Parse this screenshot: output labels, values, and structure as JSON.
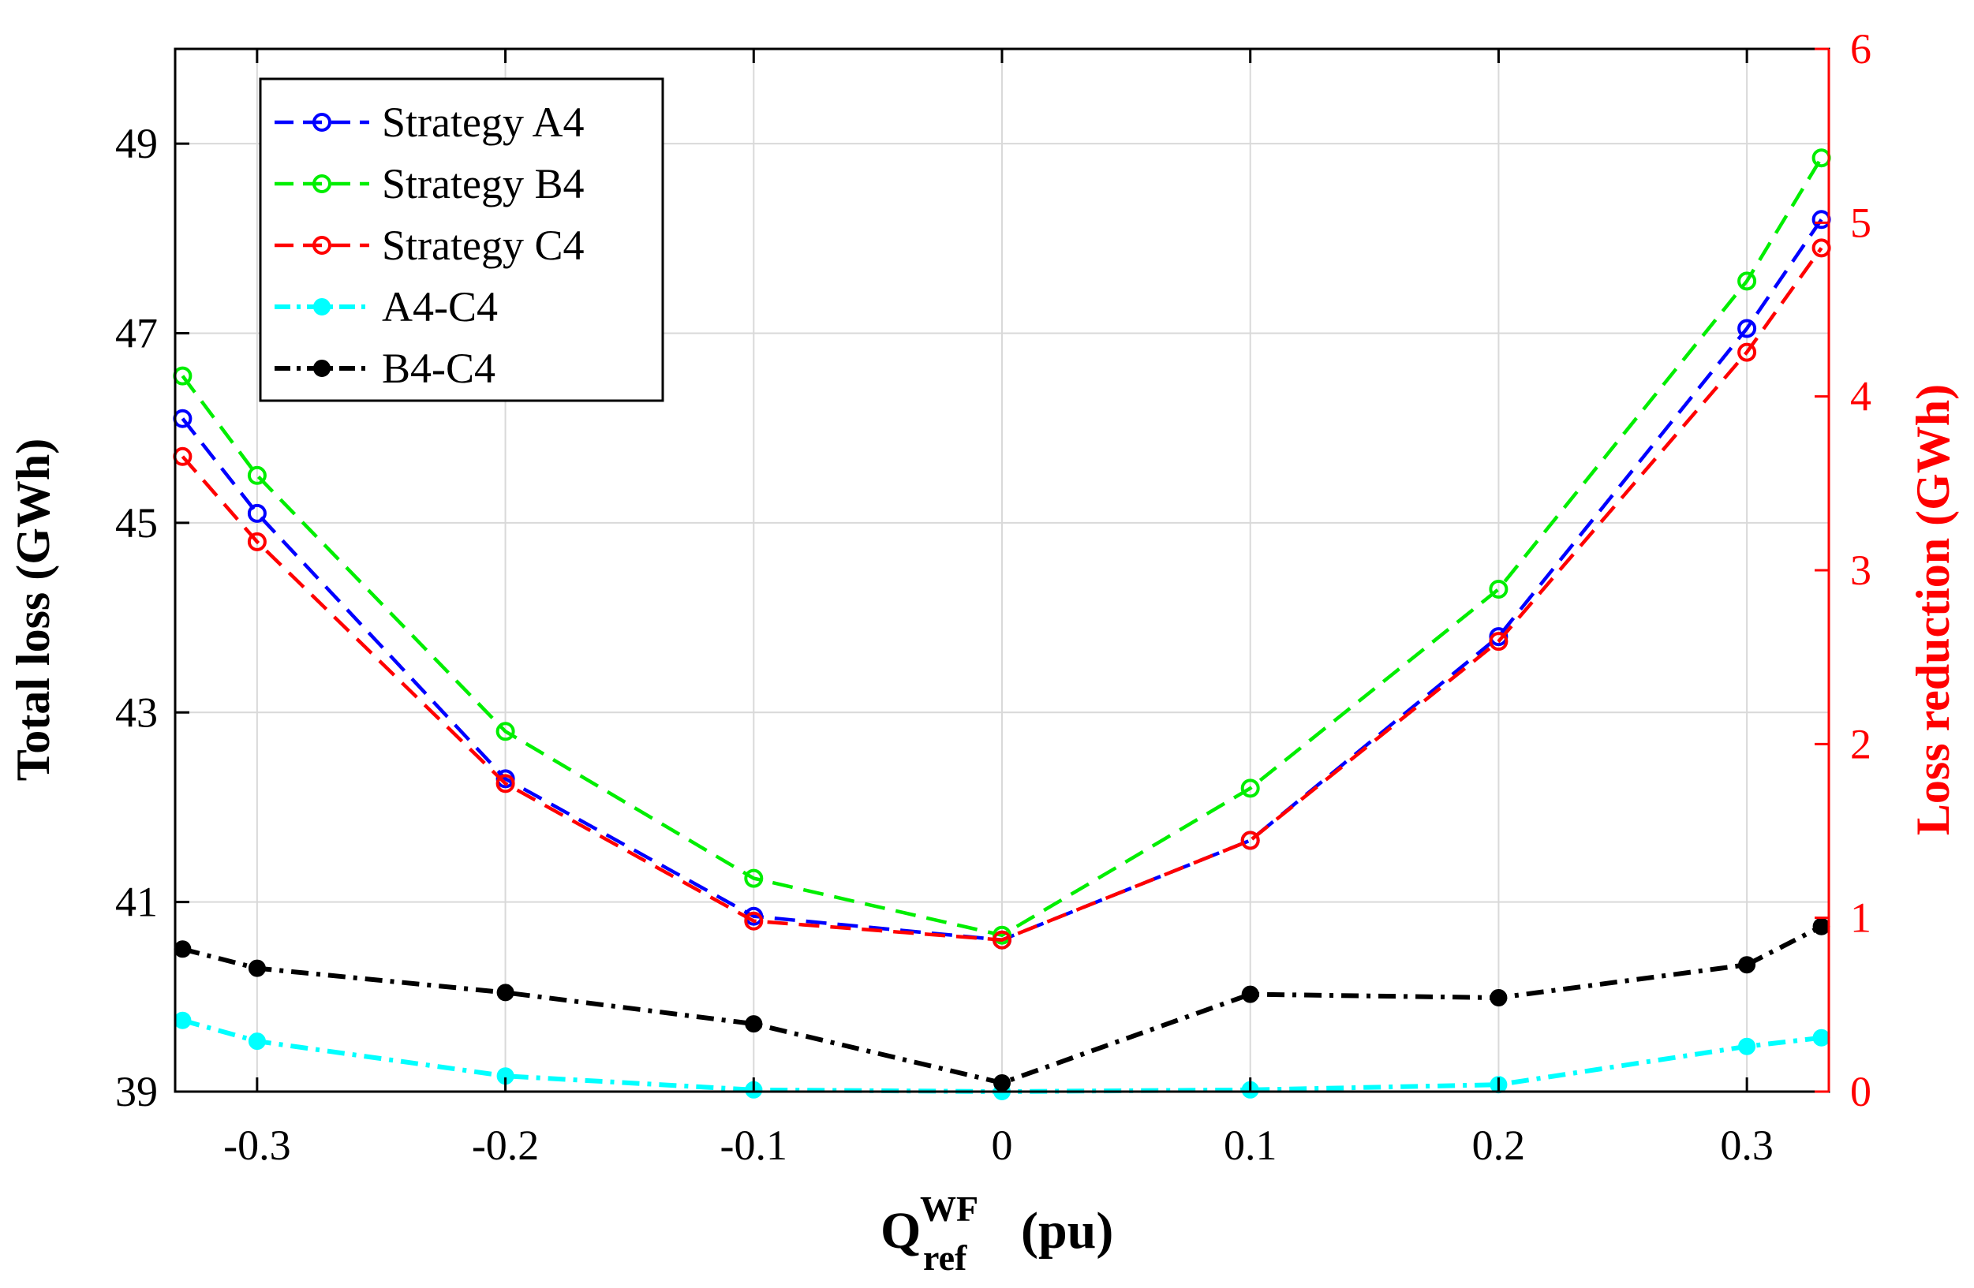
{
  "chart_data": {
    "type": "line",
    "ylabel": "Total loss (GWh)",
    "y2label": "Loss reduction (GWh)",
    "xlabel": {
      "base": "Q",
      "superscript": "WF",
      "subscript": "ref",
      "unit": "(pu)"
    },
    "xlim": [
      -0.333,
      0.333
    ],
    "ylim": [
      39,
      50
    ],
    "y2lim": [
      0,
      6
    ],
    "xticks": [
      -0.3,
      -0.2,
      -0.1,
      0,
      0.1,
      0.2,
      0.3
    ],
    "xtick_labels": [
      "-0.3",
      "-0.2",
      "-0.1",
      "0",
      "0.1",
      "0.2",
      "0.3"
    ],
    "yticks": [
      39,
      41,
      43,
      45,
      47,
      49
    ],
    "ytick_labels": [
      "39",
      "41",
      "43",
      "45",
      "47",
      "49"
    ],
    "y2ticks": [
      0,
      1,
      2,
      3,
      4,
      5,
      6
    ],
    "y2tick_labels": [
      "0",
      "1",
      "2",
      "3",
      "4",
      "5",
      "6"
    ],
    "grid": true,
    "legend_position": "top-left",
    "x": [
      -0.33,
      -0.3,
      -0.2,
      -0.1,
      0,
      0.1,
      0.2,
      0.3,
      0.33
    ],
    "series": [
      {
        "name": "Strategy A4",
        "axis": "left",
        "color": "#0000ff",
        "style": "dashed",
        "marker": "open-circle",
        "values": [
          46.1,
          45.1,
          42.3,
          40.85,
          40.6,
          41.65,
          43.8,
          47.05,
          48.2
        ]
      },
      {
        "name": "Strategy B4",
        "axis": "left",
        "color": "#00ee00",
        "style": "dashed",
        "marker": "open-circle",
        "values": [
          46.55,
          45.5,
          42.8,
          41.25,
          40.65,
          42.2,
          44.3,
          47.55,
          48.85
        ]
      },
      {
        "name": "Strategy C4",
        "axis": "left",
        "color": "#ff0000",
        "style": "dashed",
        "marker": "open-circle",
        "values": [
          45.7,
          44.8,
          42.25,
          40.8,
          40.6,
          41.65,
          43.75,
          46.8,
          47.9
        ]
      },
      {
        "name": "A4-C4",
        "axis": "right",
        "color": "#00ffff",
        "style": "dashdot",
        "marker": "filled-circle",
        "values": [
          0.41,
          0.29,
          0.09,
          0.01,
          0.0,
          0.01,
          0.04,
          0.26,
          0.31
        ]
      },
      {
        "name": "B4-C4",
        "axis": "right",
        "color": "#000000",
        "style": "dashdot",
        "marker": "filled-circle",
        "values": [
          0.82,
          0.71,
          0.57,
          0.39,
          0.05,
          0.56,
          0.54,
          0.73,
          0.95
        ]
      }
    ]
  }
}
